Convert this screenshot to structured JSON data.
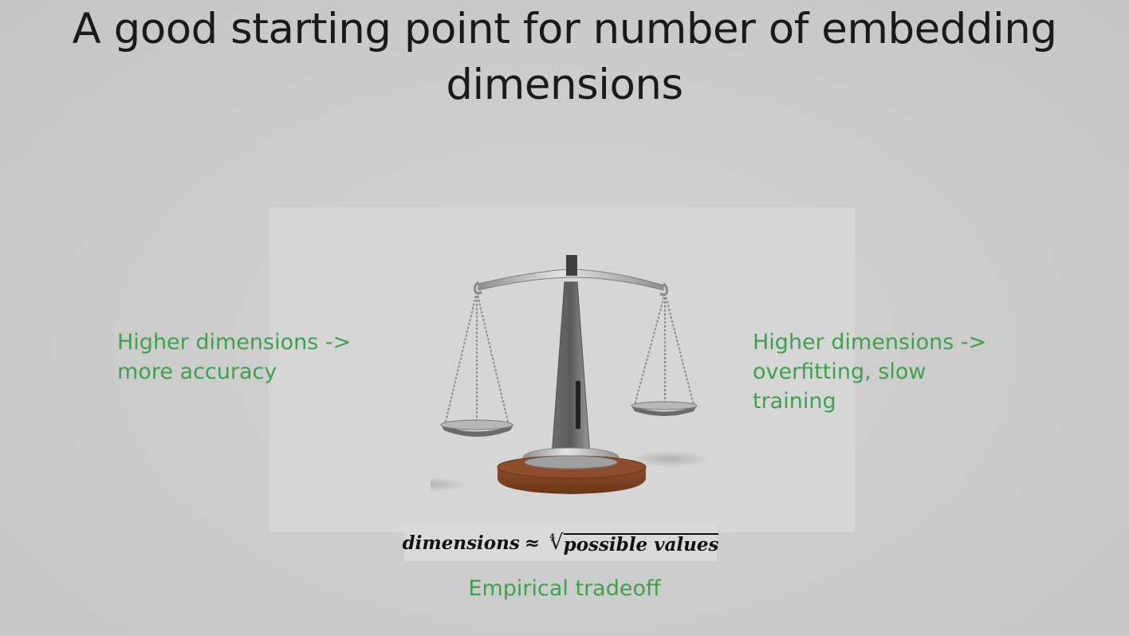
{
  "slide": {
    "title_line1": "A good starting point for number of embedding",
    "title_line2": "dimensions",
    "left_note": [
      "Higher dimensions ->",
      "more accuracy"
    ],
    "right_note": [
      "Higher dimensions ->",
      "overfitting, slow",
      "training"
    ],
    "formula": {
      "lhs": "dimensions",
      "relation": "≈",
      "root_index": "4",
      "radicand": "possible values"
    },
    "caption": "Empirical tradeoff",
    "image": {
      "icon": "balance-scale-icon"
    }
  },
  "colors": {
    "background": "#cdcdcd",
    "title_text": "#1a1a1a",
    "accent_green": "#3fa14d",
    "wood_base": "#8a4a2c",
    "metal": "#b8b8b8"
  }
}
